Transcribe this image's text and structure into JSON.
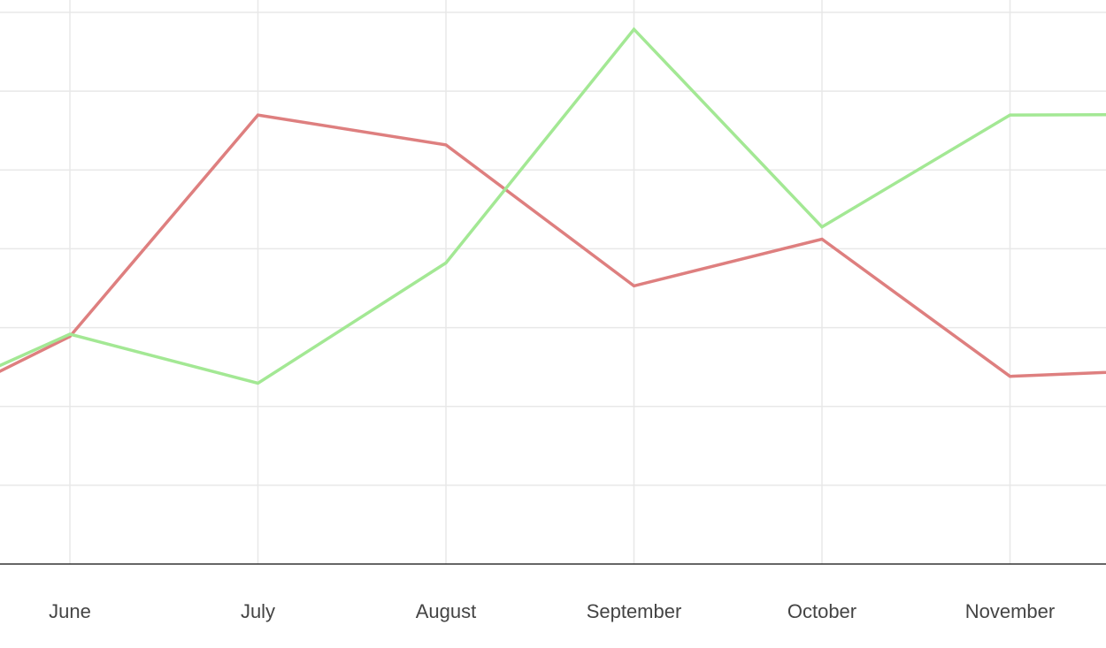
{
  "chart_data": {
    "type": "line",
    "categories": [
      "June",
      "July",
      "August",
      "September",
      "October",
      "November"
    ],
    "series": [
      {
        "values": [
          2.97,
          5.86,
          5.47,
          3.63,
          4.24,
          2.45
        ],
        "color": "#de7f7f"
      },
      {
        "values": [
          3.0,
          2.36,
          3.93,
          6.98,
          4.4,
          5.86
        ],
        "color": "#a3e894"
      }
    ],
    "edge_values": {
      "left": [
        1.75,
        1.9
      ],
      "right": [
        2.55,
        5.87
      ]
    },
    "ylim": [
      0,
      7.2
    ],
    "grid": true,
    "axis_color": "#333333",
    "grid_color": "#e8e8e8",
    "title": "",
    "xlabel": "",
    "ylabel": ""
  }
}
